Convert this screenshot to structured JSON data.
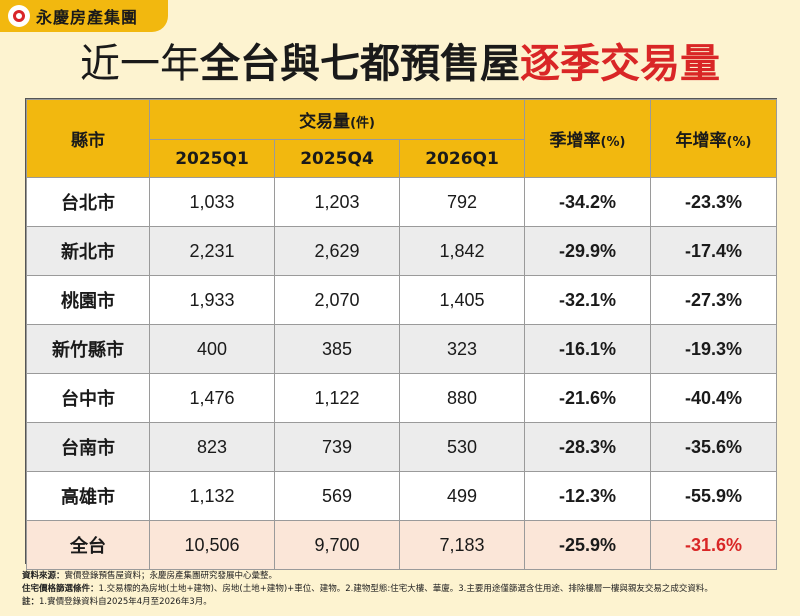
{
  "brand": {
    "name": "永慶房產集團"
  },
  "title": {
    "part1": "近一年",
    "part2": "全台與七都預售屋",
    "part3": "逐季交易量"
  },
  "table": {
    "header": {
      "city": "縣市",
      "volume": "交易量",
      "volume_unit": "(件)",
      "quarters": [
        "2025Q1",
        "2025Q4",
        "2026Q1"
      ],
      "qoq": "季增率",
      "qoq_unit": "(%)",
      "yoy": "年增率",
      "yoy_unit": "(%)"
    },
    "rows": [
      {
        "city": "台北市",
        "q1": "1,033",
        "q2": "1,203",
        "q3": "792",
        "qoq": "-34.2%",
        "yoy": "-23.3%"
      },
      {
        "city": "新北市",
        "q1": "2,231",
        "q2": "2,629",
        "q3": "1,842",
        "qoq": "-29.9%",
        "yoy": "-17.4%"
      },
      {
        "city": "桃園市",
        "q1": "1,933",
        "q2": "2,070",
        "q3": "1,405",
        "qoq": "-32.1%",
        "yoy": "-27.3%"
      },
      {
        "city": "新竹縣市",
        "q1": "400",
        "q2": "385",
        "q3": "323",
        "qoq": "-16.1%",
        "yoy": "-19.3%"
      },
      {
        "city": "台中市",
        "q1": "1,476",
        "q2": "1,122",
        "q3": "880",
        "qoq": "-21.6%",
        "yoy": "-40.4%"
      },
      {
        "city": "台南市",
        "q1": "823",
        "q2": "739",
        "q3": "530",
        "qoq": "-28.3%",
        "yoy": "-35.6%"
      },
      {
        "city": "高雄市",
        "q1": "1,132",
        "q2": "569",
        "q3": "499",
        "qoq": "-12.3%",
        "yoy": "-55.9%"
      }
    ],
    "total": {
      "city": "全台",
      "q1": "10,506",
      "q2": "9,700",
      "q3": "7,183",
      "qoq": "-25.9%",
      "yoy": "-31.6%"
    }
  },
  "notes": {
    "source_label": "資料來源：",
    "source_text": "實價登錄預售屋資料；永慶房產集團研究發展中心彙整。",
    "filter_label": "住宅價格篩選條件：",
    "filter_text": "1.交易標的為房地(土地+建物)、房地(土地+建物)+車位、建物。2.建物型態:住宅大樓、華廈。3.主要用途僅篩選含住用途、排除樓層一樓與親友交易之成交資料。",
    "note_label": "註：",
    "note_text": "1.實價登錄資料自2025年4月至2026年3月。"
  },
  "colors": {
    "accent": "#f2b80f",
    "highlight_red": "#d92626",
    "total_row": "#fbe6d8"
  }
}
